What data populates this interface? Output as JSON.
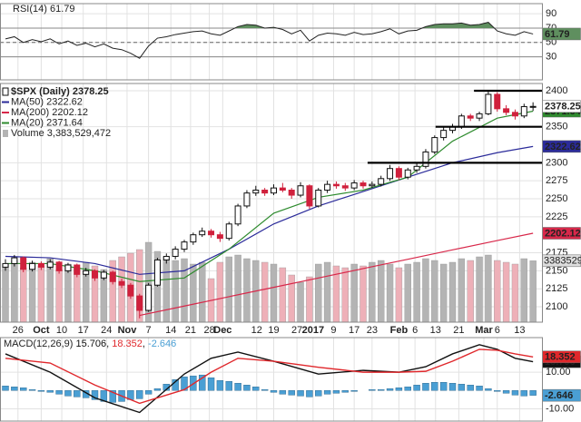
{
  "chart_data": [
    {
      "type": "rsi",
      "title": "RSI(14)",
      "color": "#222",
      "fill_color": "#5f8f5f",
      "ylim": [
        -2,
        104
      ],
      "yticks": [
        30,
        50,
        70,
        90
      ],
      "bands": [
        30,
        70
      ],
      "midline": 50,
      "values": [
        55,
        58,
        50,
        54,
        51,
        55,
        48,
        52,
        46,
        49,
        44,
        48,
        42,
        40,
        35,
        28,
        45,
        56,
        58,
        61,
        63,
        65,
        66,
        62,
        60,
        66,
        72,
        75,
        74,
        70,
        71,
        68,
        62,
        67,
        52,
        60,
        63,
        62,
        60,
        64,
        61,
        62,
        65,
        69,
        62,
        66,
        67,
        72,
        75,
        76,
        76,
        77,
        74,
        75,
        78,
        66,
        62,
        60,
        65,
        61.79
      ]
    },
    {
      "type": "candlestick",
      "title": "$SPX (Daily)",
      "grid": true,
      "ylim": [
        2078.6,
        2410.1
      ],
      "yticks": [
        2100,
        2125,
        2150,
        2175,
        2225,
        2250,
        2275,
        2300,
        2350,
        2400
      ],
      "up_color": "#111",
      "down_color": "#d0203c",
      "xticks": [
        {
          "value": 1.4,
          "label": "26"
        },
        {
          "value": 4,
          "label": "Oct"
        },
        {
          "value": 6.3,
          "label": "10"
        },
        {
          "value": 8.7,
          "label": "17"
        },
        {
          "value": 11.3,
          "label": "24"
        },
        {
          "value": 13.6,
          "label": "Nov"
        },
        {
          "value": 16,
          "label": "7"
        },
        {
          "value": 18.5,
          "label": "14"
        },
        {
          "value": 20.7,
          "label": "21"
        },
        {
          "value": 22.8,
          "label": "28"
        },
        {
          "value": 24.3,
          "label": "Dec"
        },
        {
          "value": 28.1,
          "label": "12"
        },
        {
          "value": 30,
          "label": "19"
        },
        {
          "value": 32.6,
          "label": "27"
        },
        {
          "value": 34.4,
          "label": "2017"
        },
        {
          "value": 36.7,
          "label": "9"
        },
        {
          "value": 39,
          "label": "17"
        },
        {
          "value": 41,
          "label": "23"
        },
        {
          "value": 44,
          "label": "Feb"
        },
        {
          "value": 45.8,
          "label": "6"
        },
        {
          "value": 48.1,
          "label": "13"
        },
        {
          "value": 50.7,
          "label": "21"
        },
        {
          "value": 53.5,
          "label": "Mar"
        },
        {
          "value": 55,
          "label": "6"
        },
        {
          "value": 57.5,
          "label": "13"
        }
      ],
      "candles": [
        [
          2155,
          2166,
          2150,
          2160
        ],
        [
          2160,
          2172,
          2156,
          2168
        ],
        [
          2168,
          2170,
          2148,
          2152
        ],
        [
          2152,
          2164,
          2149,
          2160
        ],
        [
          2160,
          2163,
          2151,
          2155
        ],
        [
          2155,
          2166,
          2152,
          2162
        ],
        [
          2162,
          2164,
          2146,
          2150
        ],
        [
          2150,
          2161,
          2147,
          2158
        ],
        [
          2158,
          2160,
          2141,
          2145
        ],
        [
          2145,
          2154,
          2142,
          2150
        ],
        [
          2150,
          2152,
          2136,
          2140
        ],
        [
          2140,
          2151,
          2137,
          2148
        ],
        [
          2148,
          2150,
          2131,
          2135
        ],
        [
          2135,
          2139,
          2126,
          2130
        ],
        [
          2130,
          2133,
          2111,
          2115
        ],
        [
          2115,
          2118,
          2084,
          2095
        ],
        [
          2095,
          2133,
          2093,
          2130
        ],
        [
          2130,
          2168,
          2128,
          2165
        ],
        [
          2165,
          2174,
          2160,
          2170
        ],
        [
          2170,
          2184,
          2166,
          2180
        ],
        [
          2180,
          2193,
          2176,
          2190
        ],
        [
          2190,
          2203,
          2186,
          2200
        ],
        [
          2200,
          2210,
          2197,
          2205
        ],
        [
          2205,
          2208,
          2196,
          2200
        ],
        [
          2200,
          2204,
          2190,
          2195
        ],
        [
          2195,
          2218,
          2192,
          2215
        ],
        [
          2215,
          2243,
          2212,
          2240
        ],
        [
          2240,
          2262,
          2237,
          2258
        ],
        [
          2258,
          2268,
          2254,
          2262
        ],
        [
          2262,
          2265,
          2254,
          2258
        ],
        [
          2258,
          2270,
          2255,
          2265
        ],
        [
          2265,
          2272,
          2259,
          2262
        ],
        [
          2262,
          2265,
          2250,
          2255
        ],
        [
          2255,
          2273,
          2252,
          2268
        ],
        [
          2268,
          2270,
          2236,
          2240
        ],
        [
          2240,
          2265,
          2238,
          2262
        ],
        [
          2262,
          2275,
          2258,
          2270
        ],
        [
          2270,
          2274,
          2264,
          2268
        ],
        [
          2268,
          2272,
          2261,
          2265
        ],
        [
          2265,
          2276,
          2262,
          2272
        ],
        [
          2272,
          2275,
          2264,
          2268
        ],
        [
          2268,
          2274,
          2265,
          2270
        ],
        [
          2270,
          2282,
          2267,
          2278
        ],
        [
          2278,
          2297,
          2275,
          2292
        ],
        [
          2292,
          2295,
          2276,
          2280
        ],
        [
          2280,
          2293,
          2277,
          2290
        ],
        [
          2290,
          2299,
          2286,
          2295
        ],
        [
          2295,
          2319,
          2292,
          2315
        ],
        [
          2315,
          2338,
          2312,
          2335
        ],
        [
          2335,
          2349,
          2331,
          2345
        ],
        [
          2345,
          2354,
          2341,
          2350
        ],
        [
          2350,
          2368,
          2347,
          2365
        ],
        [
          2365,
          2368,
          2358,
          2362
        ],
        [
          2362,
          2371,
          2358,
          2368
        ],
        [
          2368,
          2401,
          2366,
          2395
        ],
        [
          2395,
          2398,
          2371,
          2375
        ],
        [
          2375,
          2380,
          2366,
          2370
        ],
        [
          2370,
          2374,
          2360,
          2365
        ],
        [
          2365,
          2382,
          2362,
          2378
        ],
        [
          2378,
          2384,
          2372,
          2378.25
        ]
      ],
      "series": [
        {
          "name": "MA(50)",
          "color": "#2b2b9a",
          "x": [
            0,
            5,
            10,
            15,
            20,
            25,
            30,
            35,
            40,
            45,
            50,
            55,
            59
          ],
          "values": [
            2170,
            2168,
            2160,
            2145,
            2150,
            2180,
            2215,
            2240,
            2260,
            2280,
            2300,
            2314,
            2322.62
          ]
        },
        {
          "name": "MA(200)",
          "color": "#d8284a",
          "x": [
            15,
            20,
            25,
            30,
            35,
            40,
            45,
            50,
            55,
            59
          ],
          "values": [
            2088,
            2101,
            2114,
            2127,
            2140,
            2153,
            2166,
            2179,
            2192,
            2202.12
          ]
        },
        {
          "name": "MA(20)",
          "color": "#2e8b2e",
          "x": [
            0,
            5,
            10,
            15,
            20,
            25,
            30,
            35,
            40,
            45,
            50,
            55,
            59
          ],
          "values": [
            2160,
            2160,
            2150,
            2135,
            2140,
            2180,
            2230,
            2252,
            2262,
            2280,
            2330,
            2362,
            2371.64
          ]
        }
      ],
      "volume": {
        "name": "Volume",
        "value_label": "3,383,529,472",
        "axis_label": "3383529",
        "vlim": [
          0,
          4500000000.0
        ],
        "up_color": "#b4b4b4",
        "down_color": "#eeb0b8",
        "values": [
          3200000000.0,
          3400000000.0,
          3000000000.0,
          3300000000.0,
          3100000000.0,
          3500000000.0,
          2900000000.0,
          3200000000.0,
          3000000000.0,
          3300000000.0,
          3100000000.0,
          2900000000.0,
          3400000000.0,
          3600000000.0,
          3800000000.0,
          4000000000.0,
          4400000000.0,
          3900000000.0,
          3600000000.0,
          3400000000.0,
          3500000000.0,
          3200000000.0,
          3300000000.0,
          2400000000.0,
          3300000000.0,
          3600000000.0,
          3700000000.0,
          3500000000.0,
          3400000000.0,
          3300000000.0,
          3200000000.0,
          3000000000.0,
          2600000000.0,
          2200000000.0,
          2500000000.0,
          3200000000.0,
          3300000000.0,
          3100000000.0,
          3000000000.0,
          3200000000.0,
          3100000000.0,
          3300000000.0,
          3400000000.0,
          3200000000.0,
          3000000000.0,
          3200000000.0,
          3300000000.0,
          3500000000.0,
          3400000000.0,
          3200000000.0,
          3300000000.0,
          3500000000.0,
          3400000000.0,
          3600000000.0,
          3700000000.0,
          3400000000.0,
          3300000000.0,
          3200000000.0,
          3500000000.0,
          3383529472
        ]
      },
      "levels": [
        {
          "value": 2300,
          "from": 40.5
        },
        {
          "value": 2350,
          "from": 48.1
        },
        {
          "value": 2400,
          "from": 52.4
        }
      ]
    },
    {
      "type": "macd",
      "title": "MACD(12,26,9)",
      "ylim": [
        -16.7,
        28.9
      ],
      "yticks": [
        {
          "value": 10,
          "label": "10.00"
        },
        {
          "value": -10,
          "label": "-10.00"
        }
      ],
      "series": [
        {
          "color": "#111",
          "x": [
            0,
            5,
            10,
            15,
            20,
            23,
            26,
            30,
            35,
            40,
            44,
            47,
            50,
            53,
            55,
            57,
            59
          ],
          "values": [
            20,
            10,
            -4,
            -12,
            9,
            17.6,
            21,
            16,
            9,
            11,
            10,
            13,
            20,
            25,
            22.5,
            17.6,
            15.706
          ]
        },
        {
          "color": "#e0282c",
          "x": [
            0,
            5,
            10,
            15,
            20,
            23,
            26,
            30,
            35,
            40,
            44,
            47,
            50,
            53,
            55,
            57,
            59
          ],
          "values": [
            17.6,
            15,
            3,
            -7,
            0.5,
            10,
            17.6,
            16,
            12.7,
            10,
            10,
            10.5,
            16,
            22.5,
            22,
            20,
            18.352
          ]
        }
      ],
      "histogram": {
        "color": "#4a9fd4",
        "values": [
          2.5,
          2,
          1.5,
          0.5,
          -0.5,
          -1,
          -2,
          -3,
          -3.5,
          -4,
          -5,
          -6,
          -6.5,
          -6,
          -5,
          -4.5,
          -2,
          1,
          3.5,
          6,
          7.5,
          8,
          8.5,
          7,
          5.5,
          5,
          4,
          3,
          2,
          0.5,
          -1,
          -2,
          -2.5,
          -3,
          -3.5,
          -3,
          -2,
          -1.5,
          -1,
          -0.5,
          0,
          0.5,
          0.5,
          1,
          1.5,
          2,
          3,
          4,
          4.5,
          4.5,
          4,
          3.5,
          3,
          2.5,
          1,
          -0.5,
          -1.5,
          -2.5,
          -3,
          -2.646
        ]
      }
    }
  ]
}
